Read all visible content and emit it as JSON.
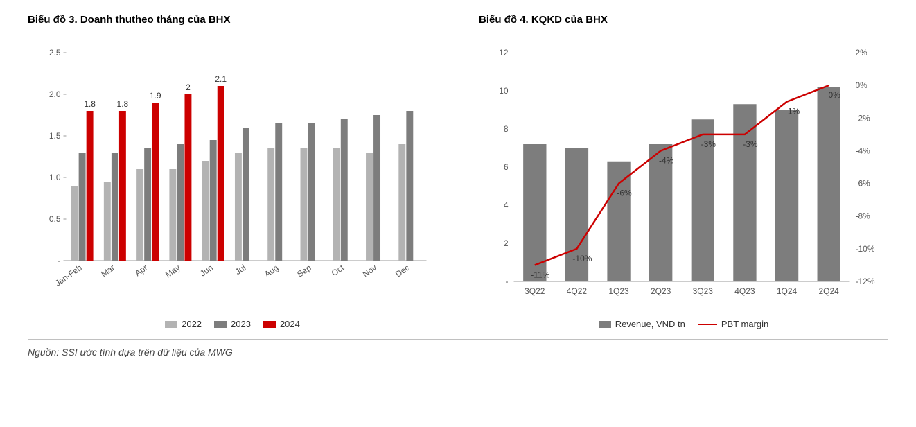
{
  "chart3": {
    "title": "Biểu đồ 3. Doanh thutheo tháng của BHX",
    "type": "bar",
    "categories": [
      "Jan-Feb",
      "Mar",
      "Apr",
      "May",
      "Jun",
      "Jul",
      "Aug",
      "Sep",
      "Oct",
      "Nov",
      "Dec"
    ],
    "series": [
      {
        "name": "2022",
        "color": "#b3b3b3",
        "values": [
          0.9,
          0.95,
          1.1,
          1.1,
          1.2,
          1.3,
          1.35,
          1.35,
          1.35,
          1.3,
          1.4
        ]
      },
      {
        "name": "2023",
        "color": "#7d7d7d",
        "values": [
          1.3,
          1.3,
          1.35,
          1.4,
          1.45,
          1.6,
          1.65,
          1.65,
          1.7,
          1.75,
          1.8
        ]
      },
      {
        "name": "2024",
        "color": "#cc0000",
        "values": [
          1.8,
          1.8,
          1.9,
          2.0,
          2.1,
          null,
          null,
          null,
          null,
          null,
          null
        ],
        "labels": [
          "1.8",
          "1.8",
          "1.9",
          "2",
          "2.1",
          "",
          "",
          "",
          "",
          "",
          ""
        ]
      }
    ],
    "ylim": [
      0,
      2.5
    ],
    "ytick_step": 0.5,
    "yticks_labels": [
      "-",
      "0.5",
      "1.0",
      "1.5",
      "2.0",
      "2.5"
    ],
    "bar_group_width": 0.7,
    "background_color": "#ffffff",
    "axis_color": "#555555",
    "label_fontsize": 12,
    "title_fontsize": 15,
    "x_label_rotation": -35
  },
  "chart4": {
    "title": "Biểu đồ 4. KQKD của BHX",
    "type": "bar+line",
    "categories": [
      "3Q22",
      "4Q22",
      "1Q23",
      "2Q23",
      "3Q23",
      "4Q23",
      "1Q24",
      "2Q24"
    ],
    "bar_series": {
      "name": "Revenue, VND tn",
      "color": "#7d7d7d",
      "values": [
        7.2,
        7.0,
        6.3,
        7.2,
        8.5,
        9.3,
        9.0,
        10.2
      ]
    },
    "line_series": {
      "name": "PBT margin",
      "color": "#cc0000",
      "values": [
        -11,
        -10,
        -6,
        -4,
        -3,
        -3,
        -1,
        0
      ],
      "labels": [
        "-11%",
        "-10%",
        "-6%",
        "-4%",
        "-3%",
        "-3%",
        "-1%",
        "0%"
      ]
    },
    "y_left": {
      "lim": [
        0,
        12
      ],
      "step": 2,
      "ticks": [
        "-",
        "2",
        "4",
        "6",
        "8",
        "10",
        "12"
      ]
    },
    "y_right": {
      "lim": [
        -12,
        2
      ],
      "step": 2,
      "ticks": [
        "-12%",
        "-10%",
        "-8%",
        "-6%",
        "-4%",
        "-2%",
        "0%",
        "2%"
      ]
    },
    "bar_width": 0.55,
    "background_color": "#ffffff",
    "axis_color": "#555555",
    "label_fontsize": 12,
    "title_fontsize": 15
  },
  "legend3": [
    {
      "swatch": "#b3b3b3",
      "label": "2022"
    },
    {
      "swatch": "#7d7d7d",
      "label": "2023"
    },
    {
      "swatch": "#cc0000",
      "label": "2024"
    }
  ],
  "legend4": [
    {
      "type": "swatch",
      "color": "#7d7d7d",
      "label": "Revenue, VND tn"
    },
    {
      "type": "line",
      "color": "#cc0000",
      "label": "PBT margin"
    }
  ],
  "source": "Nguồn: SSI ước tính dựa trên dữ liệu của MWG"
}
